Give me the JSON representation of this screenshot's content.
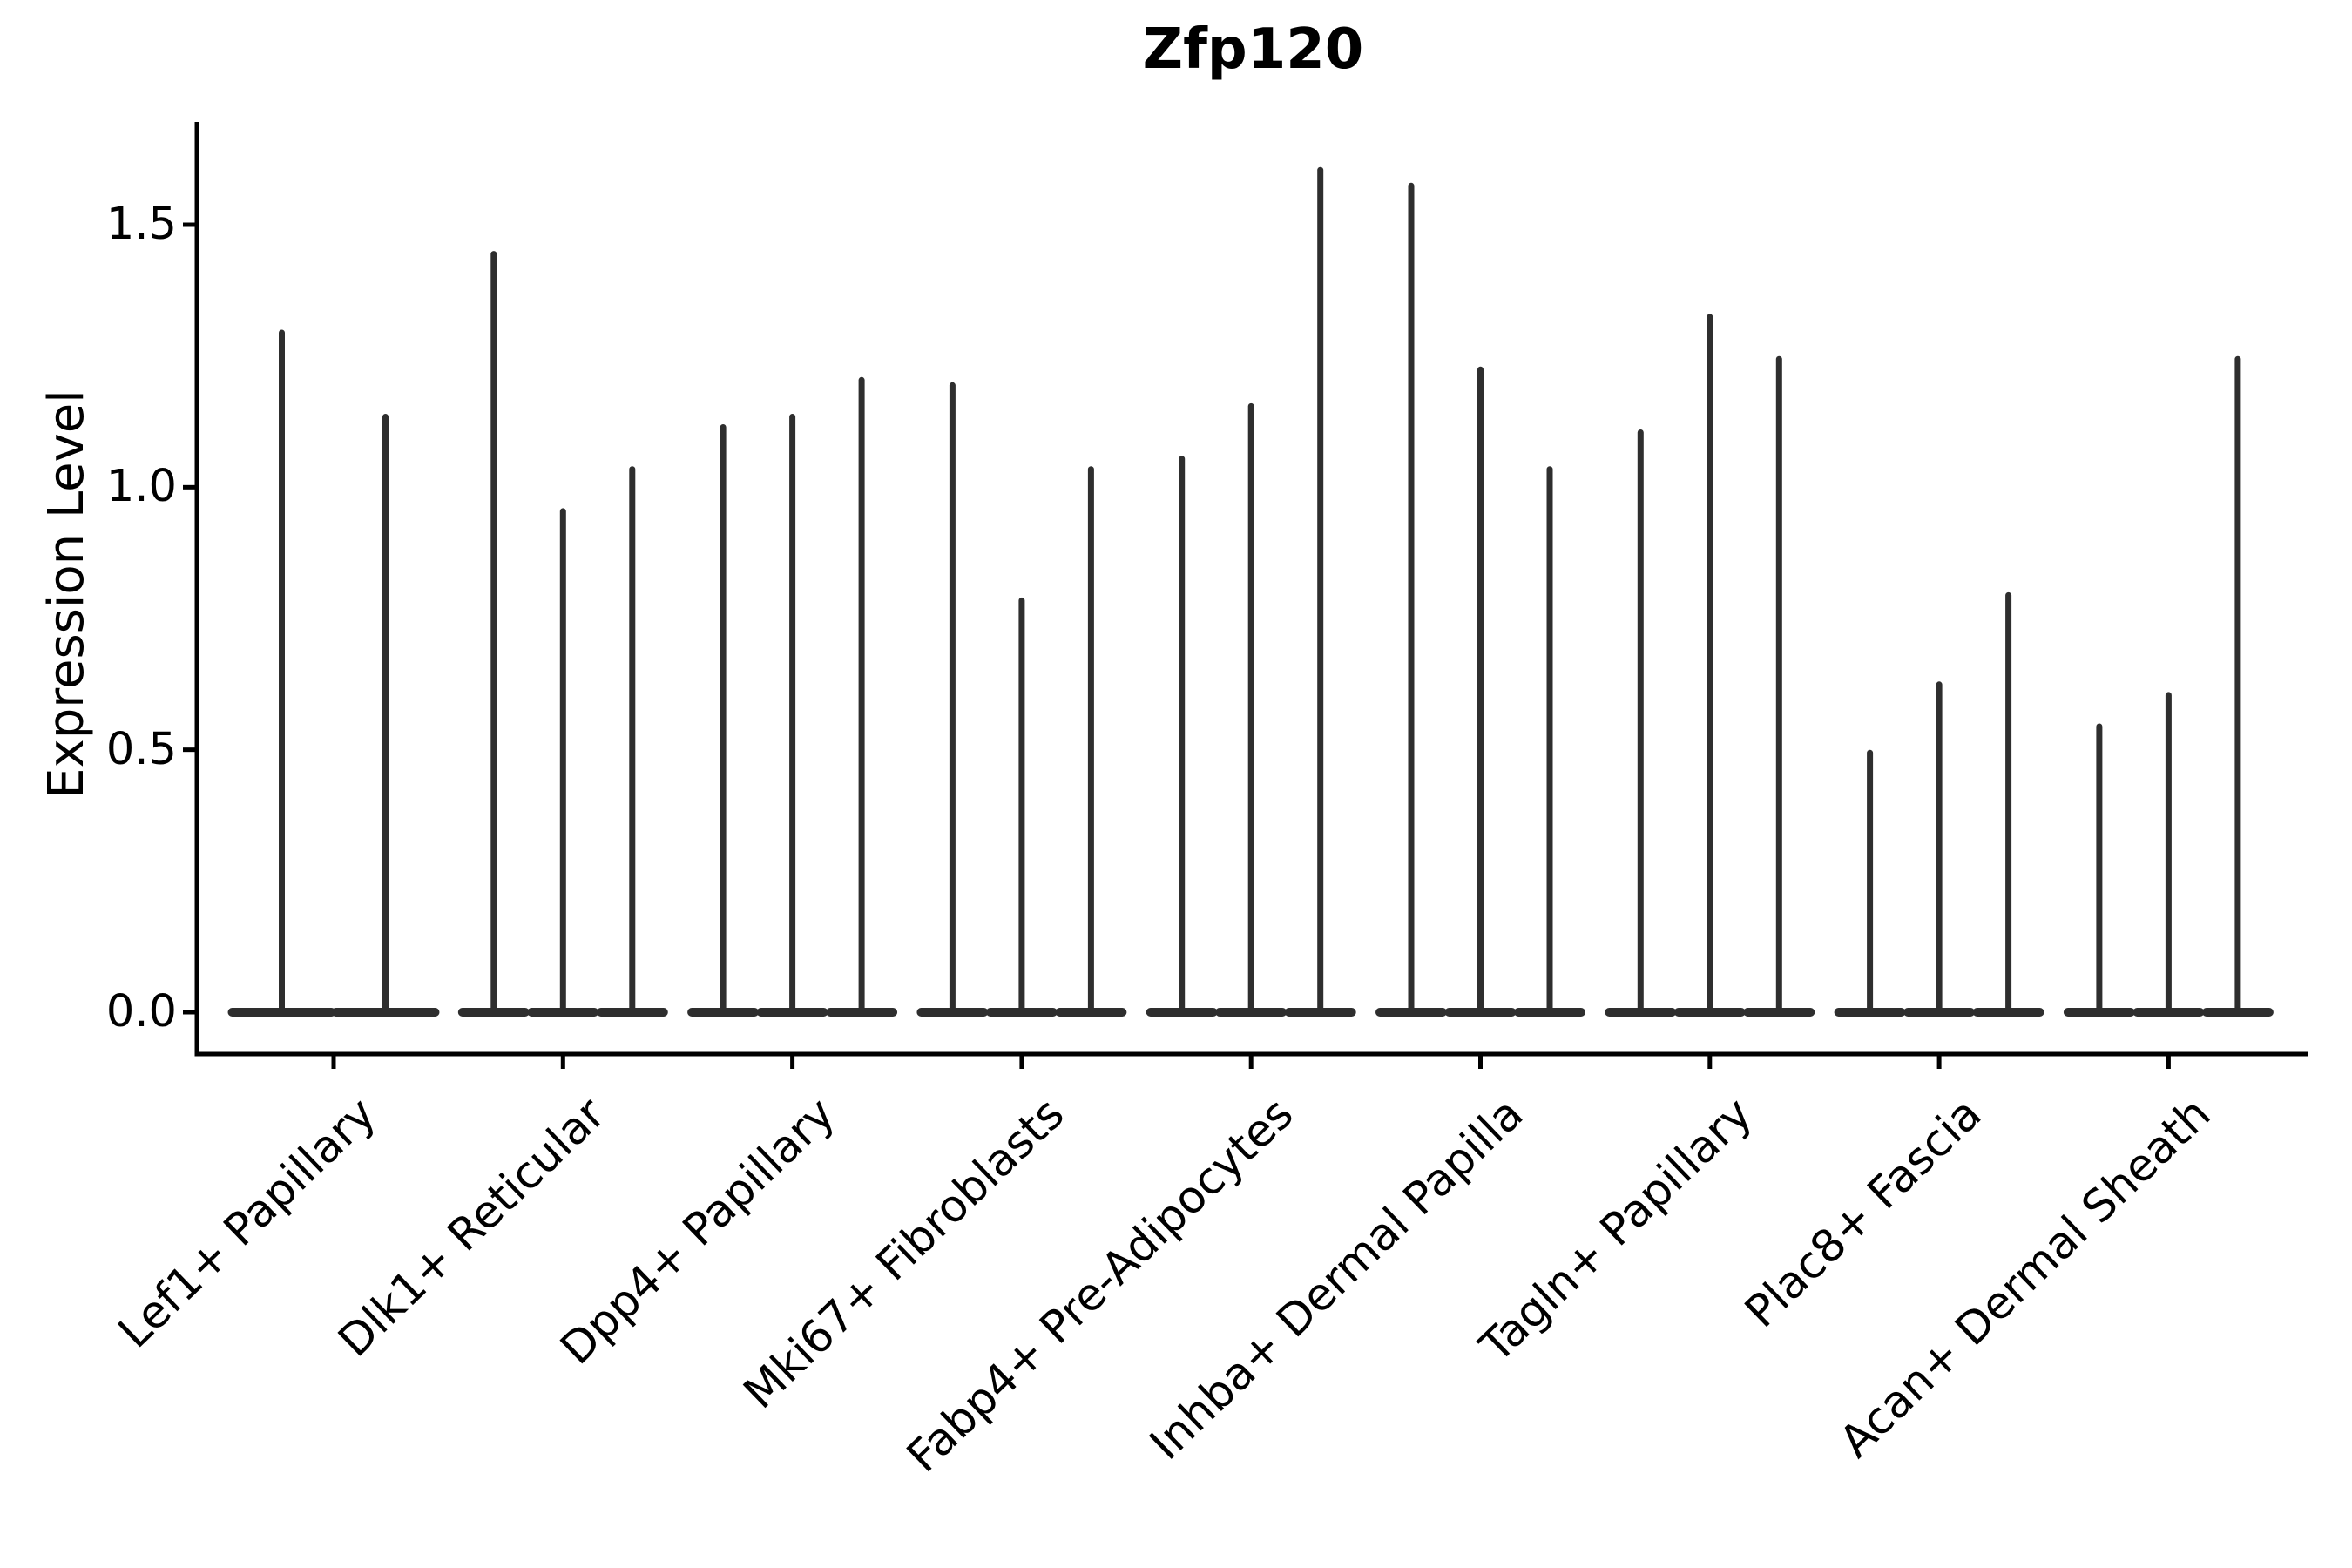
{
  "figure": {
    "title": "Zfp120",
    "ylabel": "Expression Level",
    "background_color": "#ffffff",
    "axis_color": "#000000",
    "violin_color": "#2e2e2e"
  },
  "chart_data": {
    "type": "violin",
    "title": "Zfp120",
    "xlabel": "",
    "ylabel": "Expression Level",
    "ylim": [
      -0.08,
      1.7
    ],
    "yticks": [
      0.0,
      0.5,
      1.0,
      1.5
    ],
    "ytick_labels": [
      "0.0",
      "0.5",
      "1.0",
      "1.5"
    ],
    "grid": false,
    "legend": "none",
    "description": "Stacked-violin style expression plot; each category shows 2-3 very thin violins (wide flat base at 0 with a thin spike up to the max expression value).",
    "categories": [
      "Lef1+ Papillary",
      "Dlk1+ Reticular",
      "Dpp4+ Papillary",
      "Mki67+ Fibroblasts",
      "Fabp4+ Pre-Adipocytes",
      "Inhba+ Dermal Papilla",
      "Tagln+ Papillary",
      "Plac8+ Fascia",
      "Acan+ Dermal Sheath"
    ],
    "groups": [
      {
        "label": "Lef1+ Papillary",
        "violin_maxima": [
          1.3,
          1.14
        ]
      },
      {
        "label": "Dlk1+ Reticular",
        "violin_maxima": [
          1.45,
          0.96,
          1.04
        ]
      },
      {
        "label": "Dpp4+ Papillary",
        "violin_maxima": [
          1.12,
          1.14,
          1.21
        ]
      },
      {
        "label": "Mki67+ Fibroblasts",
        "violin_maxima": [
          1.2,
          0.79,
          1.04
        ]
      },
      {
        "label": "Fabp4+ Pre-Adipocytes",
        "violin_maxima": [
          1.06,
          1.16,
          1.61
        ]
      },
      {
        "label": "Inhba+ Dermal Papilla",
        "violin_maxima": [
          1.58,
          1.23,
          1.04
        ]
      },
      {
        "label": "Tagln+ Papillary",
        "violin_maxima": [
          1.11,
          1.33,
          1.25
        ]
      },
      {
        "label": "Plac8+ Fascia",
        "violin_maxima": [
          0.5,
          0.63,
          0.8
        ]
      },
      {
        "label": "Acan+ Dermal Sheath",
        "violin_maxima": [
          0.55,
          0.61,
          1.25
        ]
      }
    ]
  }
}
